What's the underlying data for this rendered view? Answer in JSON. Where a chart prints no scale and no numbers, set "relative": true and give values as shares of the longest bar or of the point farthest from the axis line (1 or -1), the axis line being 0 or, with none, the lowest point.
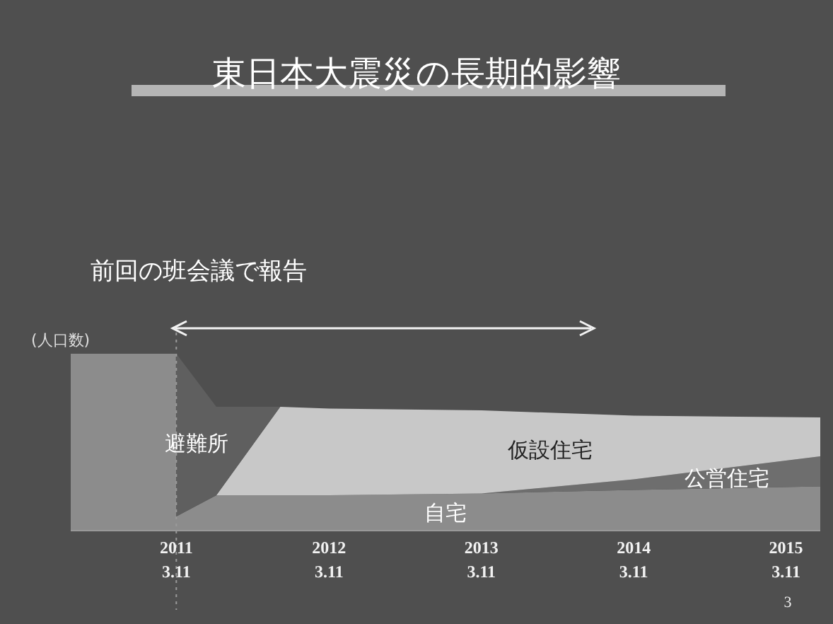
{
  "chart_data": {
    "type": "area",
    "title": "東日本大震災の長期的影響",
    "ylabel": "(人口数)",
    "relative": true,
    "stacked": true,
    "x": [
      "2010-07-01",
      "2011-03-10",
      "2011-03-11",
      "2011-06-15",
      "2011-11-15",
      "2012-03-11",
      "2013-03-11",
      "2014-03-11",
      "2015-06-01"
    ],
    "series": [
      {
        "name": "自宅",
        "color": "#8c8c8c",
        "values": [
          1,
          1,
          0.08,
          0.2,
          0.2,
          0.2,
          0.21,
          0.23,
          0.25
        ]
      },
      {
        "name": "公営住宅",
        "color": "#6e6e6e",
        "values": [
          null,
          null,
          null,
          null,
          null,
          null,
          0,
          0.06,
          0.17
        ]
      },
      {
        "name": "仮設住宅",
        "color": "#c8c8c8",
        "values": [
          null,
          null,
          null,
          0,
          0.5,
          0.49,
          0.47,
          0.36,
          0.22
        ]
      },
      {
        "name": "避難所",
        "color": "#5f5f5f",
        "values": [
          null,
          null,
          0.92,
          0.5,
          0,
          null,
          null,
          null,
          null
        ]
      }
    ],
    "xlim": [
      "2010-07-01",
      "2015-06-01"
    ],
    "xticks": [
      {
        "value": "2011-03-11",
        "label": "2011\n3.11"
      },
      {
        "value": "2012-03-11",
        "label": "2012\n3.11"
      },
      {
        "value": "2013-03-11",
        "label": "2013\n3.11"
      },
      {
        "value": "2014-03-11",
        "label": "2014\n3.11"
      },
      {
        "value": "2015-03-11",
        "label": "2015\n3.11"
      }
    ],
    "ref_lines": [
      {
        "axis": "x",
        "value": "2011-03-11",
        "color": "#9a9a9a",
        "line_style": "dotted"
      }
    ],
    "annotations": [
      "前回の班会議で報告",
      "3"
    ]
  }
}
